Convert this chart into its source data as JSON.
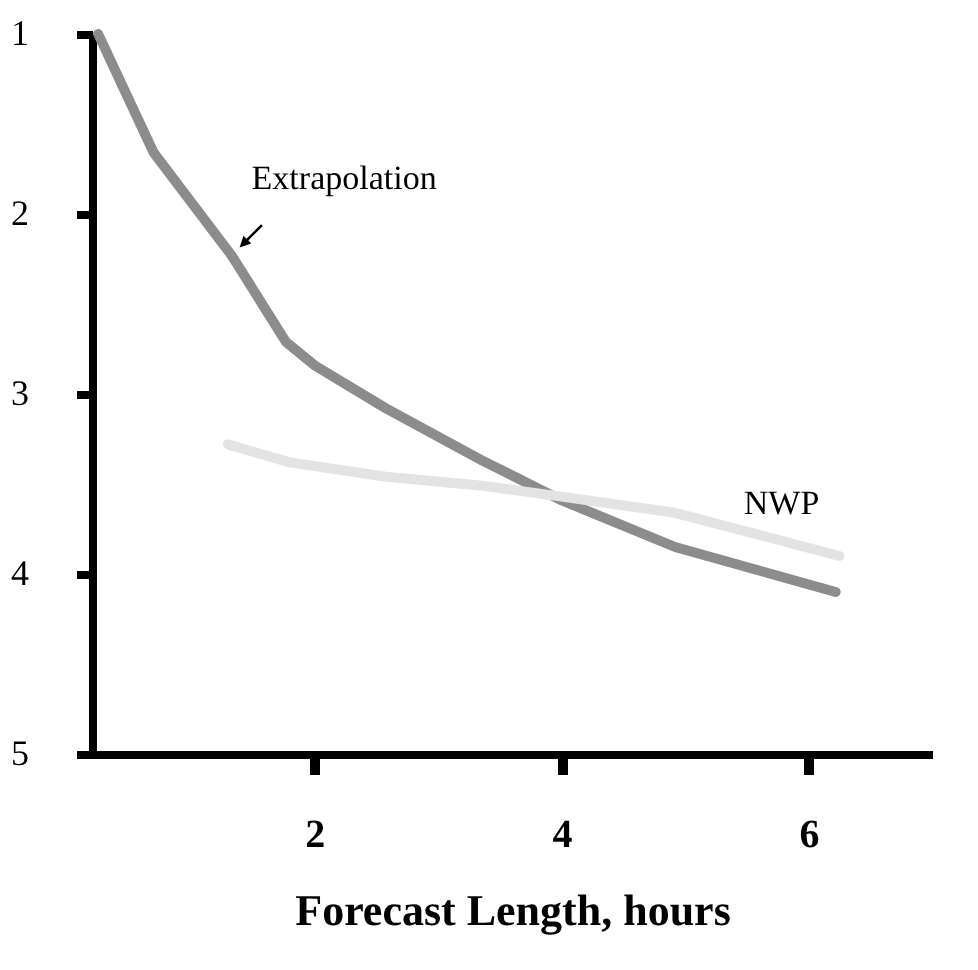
{
  "chart_data": {
    "type": "line",
    "xlabel": "Forecast Length, hours",
    "xlim": [
      0.2,
      7
    ],
    "xticks": [
      2,
      4,
      6
    ],
    "ylim": [
      5,
      1
    ],
    "yticks": [
      1,
      2,
      3,
      4,
      5
    ],
    "grid": false,
    "marker": "none",
    "line_style": "solid",
    "series": [
      {
        "name": "Extrapolation",
        "color": "#8c8c8c",
        "x": [
          0.25,
          0.7,
          1.33,
          1.77,
          2.0,
          2.58,
          3.36,
          4.0,
          4.92,
          6.22
        ],
        "values": [
          1.0,
          1.66,
          2.23,
          2.71,
          2.84,
          3.08,
          3.37,
          3.59,
          3.85,
          4.1
        ]
      },
      {
        "name": "NWP",
        "color": "#e3e3e3",
        "x": [
          1.3,
          1.8,
          2.58,
          3.36,
          4.0,
          4.92,
          6.25
        ],
        "values": [
          3.28,
          3.38,
          3.46,
          3.51,
          3.57,
          3.66,
          3.9
        ]
      }
    ]
  }
}
